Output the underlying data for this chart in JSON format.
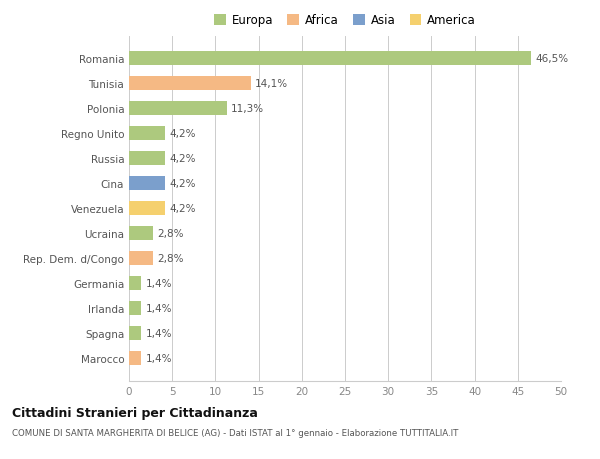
{
  "categories": [
    "Romania",
    "Tunisia",
    "Polonia",
    "Regno Unito",
    "Russia",
    "Cina",
    "Venezuela",
    "Ucraina",
    "Rep. Dem. d/Congo",
    "Germania",
    "Irlanda",
    "Spagna",
    "Marocco"
  ],
  "values": [
    46.5,
    14.1,
    11.3,
    4.2,
    4.2,
    4.2,
    4.2,
    2.8,
    2.8,
    1.4,
    1.4,
    1.4,
    1.4
  ],
  "labels": [
    "46,5%",
    "14,1%",
    "11,3%",
    "4,2%",
    "4,2%",
    "4,2%",
    "4,2%",
    "2,8%",
    "2,8%",
    "1,4%",
    "1,4%",
    "1,4%",
    "1,4%"
  ],
  "colors": [
    "#adc97e",
    "#f5b984",
    "#adc97e",
    "#adc97e",
    "#adc97e",
    "#7b9fcc",
    "#f5d06e",
    "#adc97e",
    "#f5b984",
    "#adc97e",
    "#adc97e",
    "#adc97e",
    "#f5b984"
  ],
  "legend_labels": [
    "Europa",
    "Africa",
    "Asia",
    "America"
  ],
  "legend_colors": [
    "#adc97e",
    "#f5b984",
    "#7b9fcc",
    "#f5d06e"
  ],
  "title": "Cittadini Stranieri per Cittadinanza",
  "subtitle": "COMUNE DI SANTA MARGHERITA DI BELICE (AG) - Dati ISTAT al 1° gennaio - Elaborazione TUTTITALIA.IT",
  "xlim": [
    0,
    50
  ],
  "xticks": [
    0,
    5,
    10,
    15,
    20,
    25,
    30,
    35,
    40,
    45,
    50
  ],
  "background_color": "#ffffff",
  "grid_color": "#cccccc",
  "bar_height": 0.55
}
